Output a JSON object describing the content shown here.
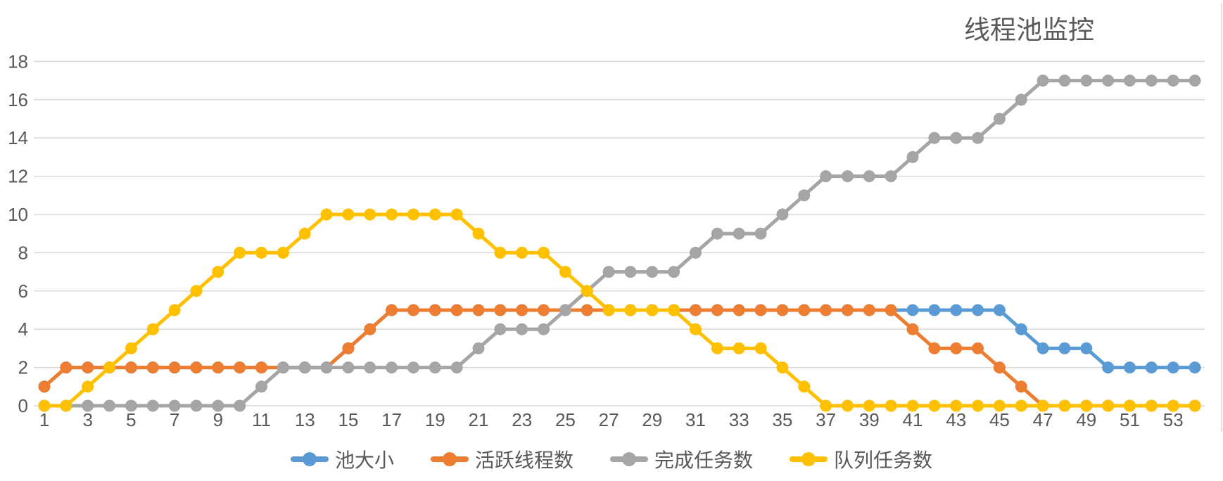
{
  "chart_data": {
    "type": "line",
    "title": "线程池监控",
    "legend_position": "bottom",
    "grid": "horizontal",
    "ylim": [
      0,
      18
    ],
    "y_ticks": [
      0,
      2,
      4,
      6,
      8,
      10,
      12,
      14,
      16,
      18
    ],
    "x": [
      1,
      2,
      3,
      4,
      5,
      6,
      7,
      8,
      9,
      10,
      11,
      12,
      13,
      14,
      15,
      16,
      17,
      18,
      19,
      20,
      21,
      22,
      23,
      24,
      25,
      26,
      27,
      28,
      29,
      30,
      31,
      32,
      33,
      34,
      35,
      36,
      37,
      38,
      39,
      40,
      41,
      42,
      43,
      44,
      45,
      46,
      47,
      48,
      49,
      50,
      51,
      52,
      53,
      54
    ],
    "x_tick_labels": [
      "1",
      "3",
      "5",
      "7",
      "9",
      "11",
      "13",
      "15",
      "17",
      "19",
      "21",
      "23",
      "25",
      "27",
      "29",
      "31",
      "33",
      "35",
      "37",
      "39",
      "41",
      "43",
      "45",
      "47",
      "49",
      "51",
      "53"
    ],
    "series": [
      {
        "name": "池大小",
        "color": "#5B9BD5",
        "values": [
          1,
          2,
          2,
          2,
          2,
          2,
          2,
          2,
          2,
          2,
          2,
          2,
          2,
          2,
          3,
          4,
          5,
          5,
          5,
          5,
          5,
          5,
          5,
          5,
          5,
          5,
          5,
          5,
          5,
          5,
          5,
          5,
          5,
          5,
          5,
          5,
          5,
          5,
          5,
          5,
          5,
          5,
          5,
          5,
          5,
          4,
          3,
          3,
          3,
          2,
          2,
          2,
          2,
          2
        ]
      },
      {
        "name": "活跃线程数",
        "color": "#ED7D31",
        "values": [
          1,
          2,
          2,
          2,
          2,
          2,
          2,
          2,
          2,
          2,
          2,
          2,
          2,
          2,
          3,
          4,
          5,
          5,
          5,
          5,
          5,
          5,
          5,
          5,
          5,
          5,
          5,
          5,
          5,
          5,
          5,
          5,
          5,
          5,
          5,
          5,
          5,
          5,
          5,
          5,
          4,
          3,
          3,
          3,
          2,
          1,
          0,
          0,
          0,
          0,
          0,
          0,
          0,
          0
        ]
      },
      {
        "name": "完成任务数",
        "color": "#A5A5A5",
        "values": [
          0,
          0,
          0,
          0,
          0,
          0,
          0,
          0,
          0,
          0,
          1,
          2,
          2,
          2,
          2,
          2,
          2,
          2,
          2,
          2,
          3,
          4,
          4,
          4,
          5,
          6,
          7,
          7,
          7,
          7,
          8,
          9,
          9,
          9,
          10,
          11,
          12,
          12,
          12,
          12,
          13,
          14,
          14,
          14,
          15,
          16,
          17,
          17,
          17,
          17,
          17,
          17,
          17,
          17
        ]
      },
      {
        "name": "队列任务数",
        "color": "#FFC000",
        "values": [
          0,
          0,
          1,
          2,
          3,
          4,
          5,
          6,
          7,
          8,
          8,
          8,
          9,
          10,
          10,
          10,
          10,
          10,
          10,
          10,
          9,
          8,
          8,
          8,
          7,
          6,
          5,
          5,
          5,
          5,
          4,
          3,
          3,
          3,
          2,
          1,
          0,
          0,
          0,
          0,
          0,
          0,
          0,
          0,
          0,
          0,
          0,
          0,
          0,
          0,
          0,
          0,
          0,
          0
        ]
      }
    ],
    "style": {
      "grid_color": "#D9D9D9",
      "axis_text_color": "#595959",
      "title_color": "#595959",
      "background": "#FFFFFF"
    }
  }
}
